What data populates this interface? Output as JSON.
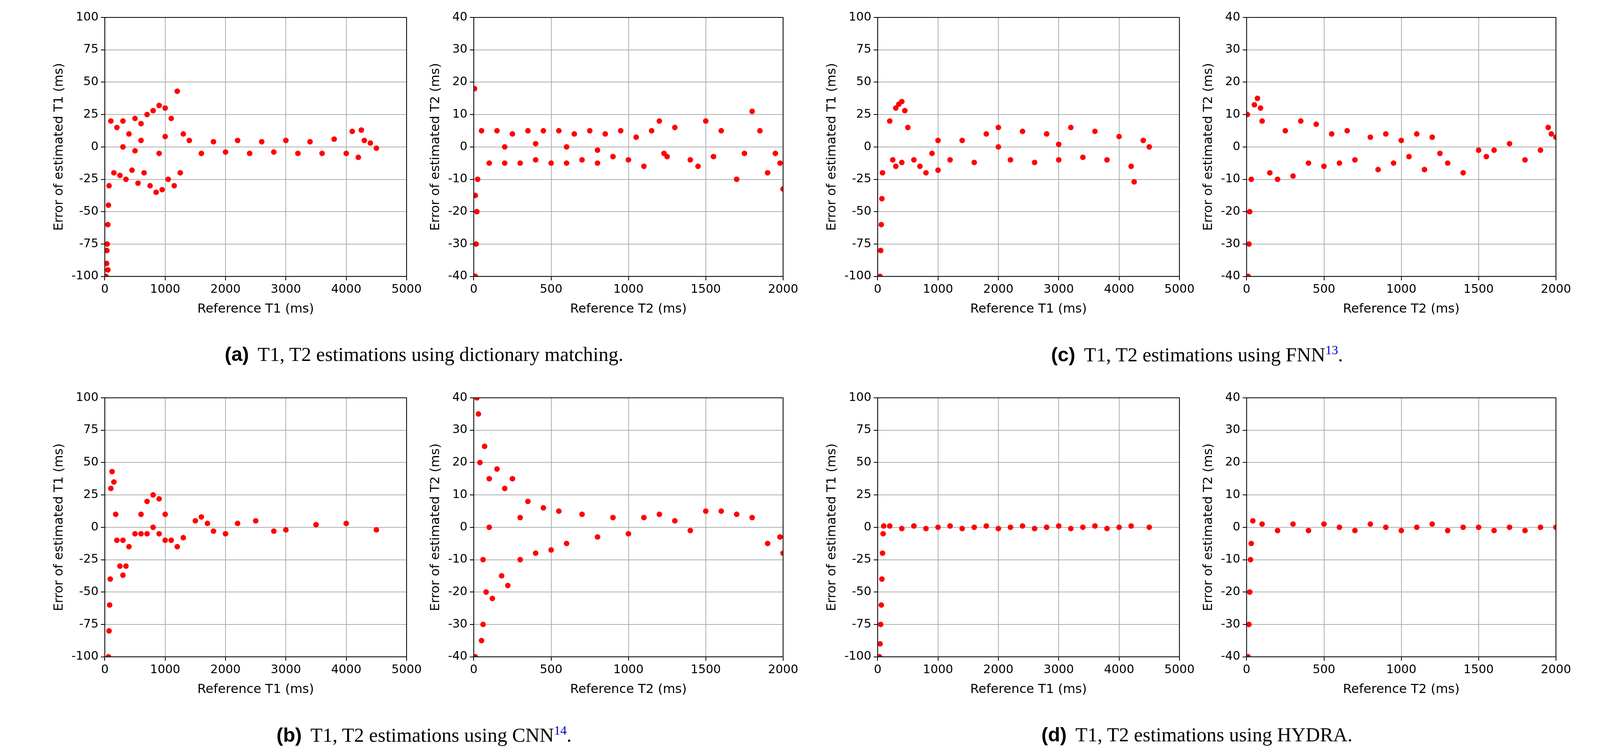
{
  "chart_data": [
    {
      "type": "scatter",
      "x_label": "Reference T1 (ms)",
      "y_label": "Error of estimated T1 (ms)",
      "color": "#ff0000",
      "grid": true,
      "xlim": [
        0,
        5000
      ],
      "xticks": [
        0,
        1000,
        2000,
        3000,
        4000,
        5000
      ],
      "ylim": [
        -100,
        100
      ],
      "yticks": [
        -100,
        -75,
        -50,
        -25,
        0,
        25,
        50,
        75,
        100
      ],
      "x": [
        20,
        30,
        35,
        40,
        50,
        50,
        60,
        70,
        100,
        150,
        200,
        250,
        300,
        350,
        400,
        450,
        500,
        550,
        600,
        650,
        700,
        750,
        800,
        850,
        900,
        950,
        1000,
        1050,
        1100,
        1150,
        1200,
        1250,
        1300,
        300,
        600,
        900,
        1000,
        500,
        1400,
        1600,
        1800,
        2000,
        2200,
        2400,
        2600,
        2800,
        3000,
        3200,
        3400,
        3600,
        3800,
        4000,
        4100,
        4200,
        4250,
        4300,
        4400,
        4500
      ],
      "values": [
        -100,
        -90,
        -80,
        -75,
        -60,
        -95,
        -45,
        -30,
        20,
        -20,
        15,
        -22,
        20,
        -25,
        10,
        -18,
        22,
        -28,
        18,
        -20,
        25,
        -30,
        28,
        -35,
        32,
        -33,
        30,
        -25,
        22,
        -30,
        43,
        -20,
        10,
        0,
        5,
        -5,
        8,
        -3,
        5,
        -5,
        4,
        -4,
        5,
        -5,
        4,
        -4,
        5,
        -5,
        4,
        -5,
        6,
        -5,
        12,
        -8,
        13,
        5,
        3,
        -1
      ]
    },
    {
      "type": "scatter",
      "x_label": "Reference T2 (ms)",
      "y_label": "Error of estimated T2 (ms)",
      "color": "#ff0000",
      "grid": true,
      "xlim": [
        0,
        2000
      ],
      "xticks": [
        0,
        500,
        1000,
        1500,
        2000
      ],
      "ylim": [
        -40,
        40
      ],
      "yticks": [
        -40,
        -30,
        -20,
        -10,
        0,
        10,
        20,
        30,
        40
      ],
      "x": [
        5,
        10,
        10,
        15,
        20,
        25,
        50,
        100,
        150,
        200,
        250,
        300,
        350,
        400,
        450,
        500,
        550,
        600,
        650,
        700,
        750,
        800,
        850,
        900,
        950,
        1000,
        200,
        400,
        600,
        800,
        1050,
        1100,
        1150,
        1200,
        1250,
        1300,
        1400,
        1450,
        1500,
        1550,
        1600,
        1700,
        1750,
        1800,
        1850,
        1900,
        1950,
        2000,
        1980,
        1230
      ],
      "values": [
        18,
        -40,
        -15,
        -30,
        -20,
        -10,
        5,
        -5,
        5,
        -5,
        4,
        -5,
        5,
        -4,
        5,
        -5,
        5,
        -5,
        4,
        -4,
        5,
        -5,
        4,
        -3,
        5,
        -4,
        0,
        1,
        0,
        -1,
        3,
        -6,
        5,
        8,
        -3,
        6,
        -4,
        -6,
        8,
        -3,
        5,
        -10,
        -2,
        11,
        5,
        -8,
        -2,
        -13,
        -5,
        -2
      ]
    },
    {
      "type": "scatter",
      "x_label": "Reference T1 (ms)",
      "y_label": "Error of estimated T1 (ms)",
      "color": "#ff0000",
      "grid": true,
      "xlim": [
        0,
        5000
      ],
      "xticks": [
        0,
        1000,
        2000,
        3000,
        4000,
        5000
      ],
      "ylim": [
        -100,
        100
      ],
      "yticks": [
        -100,
        -75,
        -50,
        -25,
        0,
        25,
        50,
        75,
        100
      ],
      "x": [
        60,
        70,
        80,
        90,
        100,
        120,
        150,
        180,
        200,
        250,
        300,
        350,
        400,
        500,
        600,
        700,
        800,
        900,
        1000,
        1100,
        1200,
        1300,
        1500,
        1600,
        1700,
        1800,
        2000,
        2200,
        2500,
        2800,
        3000,
        3500,
        4000,
        4500,
        700,
        800,
        900,
        1000,
        600,
        300
      ],
      "values": [
        -100,
        -80,
        -60,
        -40,
        30,
        43,
        35,
        10,
        -10,
        -30,
        -37,
        -30,
        -15,
        -5,
        10,
        20,
        25,
        22,
        10,
        -10,
        -15,
        -8,
        5,
        8,
        3,
        -3,
        -5,
        3,
        5,
        -3,
        -2,
        2,
        3,
        -2,
        -5,
        0,
        -5,
        -10,
        -5,
        -10
      ]
    },
    {
      "type": "scatter",
      "x_label": "Reference T2 (ms)",
      "y_label": "Error of estimated T2 (ms)",
      "color": "#ff0000",
      "grid": true,
      "xlim": [
        0,
        2000
      ],
      "xticks": [
        0,
        500,
        1000,
        1500,
        2000
      ],
      "ylim": [
        -40,
        40
      ],
      "yticks": [
        -40,
        -30,
        -20,
        -10,
        0,
        10,
        20,
        30,
        40
      ],
      "x": [
        10,
        20,
        30,
        40,
        50,
        60,
        70,
        80,
        100,
        120,
        150,
        180,
        200,
        220,
        250,
        300,
        350,
        400,
        450,
        500,
        550,
        600,
        700,
        800,
        900,
        1000,
        1100,
        1200,
        1300,
        1400,
        1500,
        1600,
        1700,
        1800,
        1900,
        2000,
        1980,
        60,
        100,
        300
      ],
      "values": [
        -40,
        40,
        35,
        20,
        -35,
        -30,
        25,
        -20,
        15,
        -22,
        18,
        -15,
        12,
        -18,
        15,
        -10,
        8,
        -8,
        6,
        -7,
        5,
        -5,
        4,
        -3,
        3,
        -2,
        3,
        4,
        2,
        -1,
        5,
        5,
        4,
        3,
        -5,
        -8,
        -3,
        -10,
        0,
        3
      ]
    },
    {
      "type": "scatter",
      "x_label": "Reference T1 (ms)",
      "y_label": "Error of estimated T1 (ms)",
      "color": "#ff0000",
      "grid": true,
      "xlim": [
        0,
        5000
      ],
      "xticks": [
        0,
        1000,
        2000,
        3000,
        4000,
        5000
      ],
      "ylim": [
        -100,
        100
      ],
      "yticks": [
        -100,
        -75,
        -50,
        -25,
        0,
        25,
        50,
        75,
        100
      ],
      "x": [
        40,
        50,
        60,
        70,
        80,
        200,
        300,
        350,
        400,
        450,
        500,
        250,
        300,
        400,
        600,
        700,
        800,
        900,
        1000,
        1200,
        1400,
        1600,
        1800,
        2000,
        2200,
        2400,
        2600,
        2800,
        3000,
        3200,
        3400,
        3600,
        3800,
        4000,
        4200,
        4250,
        4400,
        4500,
        1000,
        2000,
        3000
      ],
      "values": [
        -100,
        -80,
        -60,
        -40,
        -20,
        20,
        30,
        33,
        35,
        28,
        15,
        -10,
        -15,
        -12,
        -10,
        -15,
        -20,
        -5,
        -18,
        -10,
        5,
        -12,
        10,
        15,
        -10,
        12,
        -12,
        10,
        -10,
        15,
        -8,
        12,
        -10,
        8,
        -15,
        -27,
        5,
        0,
        5,
        0,
        2
      ]
    },
    {
      "type": "scatter",
      "x_label": "Reference T2 (ms)",
      "y_label": "Error of estimated T2 (ms)",
      "color": "#ff0000",
      "grid": true,
      "xlim": [
        0,
        2000
      ],
      "xticks": [
        0,
        500,
        1000,
        1500,
        2000
      ],
      "ylim": [
        -40,
        40
      ],
      "yticks": [
        -40,
        -30,
        -20,
        -10,
        0,
        10,
        20,
        30,
        40
      ],
      "x": [
        10,
        15,
        20,
        30,
        5,
        50,
        70,
        90,
        100,
        150,
        200,
        250,
        300,
        350,
        400,
        450,
        500,
        550,
        600,
        650,
        700,
        800,
        850,
        900,
        950,
        1000,
        1050,
        1100,
        1150,
        1200,
        1250,
        1300,
        1400,
        1500,
        1550,
        1600,
        1700,
        1800,
        1900,
        1950,
        2000,
        1970
      ],
      "values": [
        -40,
        -30,
        -20,
        -10,
        10,
        13,
        15,
        12,
        8,
        -8,
        -10,
        5,
        -9,
        8,
        -5,
        7,
        -6,
        4,
        -5,
        5,
        -4,
        3,
        -7,
        4,
        -5,
        2,
        -3,
        4,
        -7,
        3,
        -2,
        -5,
        -8,
        -1,
        -3,
        -1,
        1,
        -4,
        -1,
        6,
        3,
        4
      ]
    },
    {
      "type": "scatter",
      "x_label": "Reference T1 (ms)",
      "y_label": "Error of estimated T1 (ms)",
      "color": "#ff0000",
      "grid": true,
      "xlim": [
        0,
        5000
      ],
      "xticks": [
        0,
        1000,
        2000,
        3000,
        4000,
        5000
      ],
      "ylim": [
        -100,
        100
      ],
      "yticks": [
        -100,
        -75,
        -50,
        -25,
        0,
        25,
        50,
        75,
        100
      ],
      "x": [
        30,
        40,
        50,
        60,
        70,
        80,
        90,
        100,
        200,
        400,
        600,
        800,
        1000,
        1200,
        1400,
        1600,
        1800,
        2000,
        2200,
        2400,
        2600,
        2800,
        3000,
        3200,
        3400,
        3600,
        3800,
        4000,
        4200,
        4500
      ],
      "values": [
        -100,
        -90,
        -75,
        -60,
        -40,
        -20,
        -5,
        1,
        1,
        -1,
        1,
        -1,
        0,
        1,
        -1,
        0,
        1,
        -1,
        0,
        1,
        -1,
        0,
        1,
        -1,
        0,
        1,
        -1,
        0,
        1,
        0
      ]
    },
    {
      "type": "scatter",
      "x_label": "Reference T2 (ms)",
      "y_label": "Error of estimated T2 (ms)",
      "color": "#ff0000",
      "grid": true,
      "xlim": [
        0,
        2000
      ],
      "xticks": [
        0,
        500,
        1000,
        1500,
        2000
      ],
      "ylim": [
        -40,
        40
      ],
      "yticks": [
        -40,
        -30,
        -20,
        -10,
        0,
        10,
        20,
        30,
        40
      ],
      "x": [
        10,
        15,
        20,
        25,
        30,
        40,
        100,
        200,
        300,
        400,
        500,
        600,
        700,
        800,
        900,
        1000,
        1100,
        1200,
        1300,
        1400,
        1500,
        1600,
        1700,
        1800,
        1900,
        2000
      ],
      "values": [
        -40,
        -30,
        -20,
        -10,
        -5,
        2,
        1,
        -1,
        1,
        -1,
        1,
        0,
        -1,
        1,
        0,
        -1,
        0,
        1,
        -1,
        0,
        0,
        -1,
        0,
        -1,
        0,
        0
      ]
    }
  ],
  "captions": [
    {
      "label": "(a)",
      "text": "T1, T2 estimations using dictionary matching."
    },
    {
      "label": "(b)",
      "text": "T1, T2 estimations using CNN",
      "citation": "14",
      "text_after": "."
    },
    {
      "label": "(c)",
      "text": "T1, T2 estimations using FNN",
      "citation": "13",
      "text_after": "."
    },
    {
      "label": "(d)",
      "text": "T1, T2 estimations using HYDRA."
    }
  ]
}
